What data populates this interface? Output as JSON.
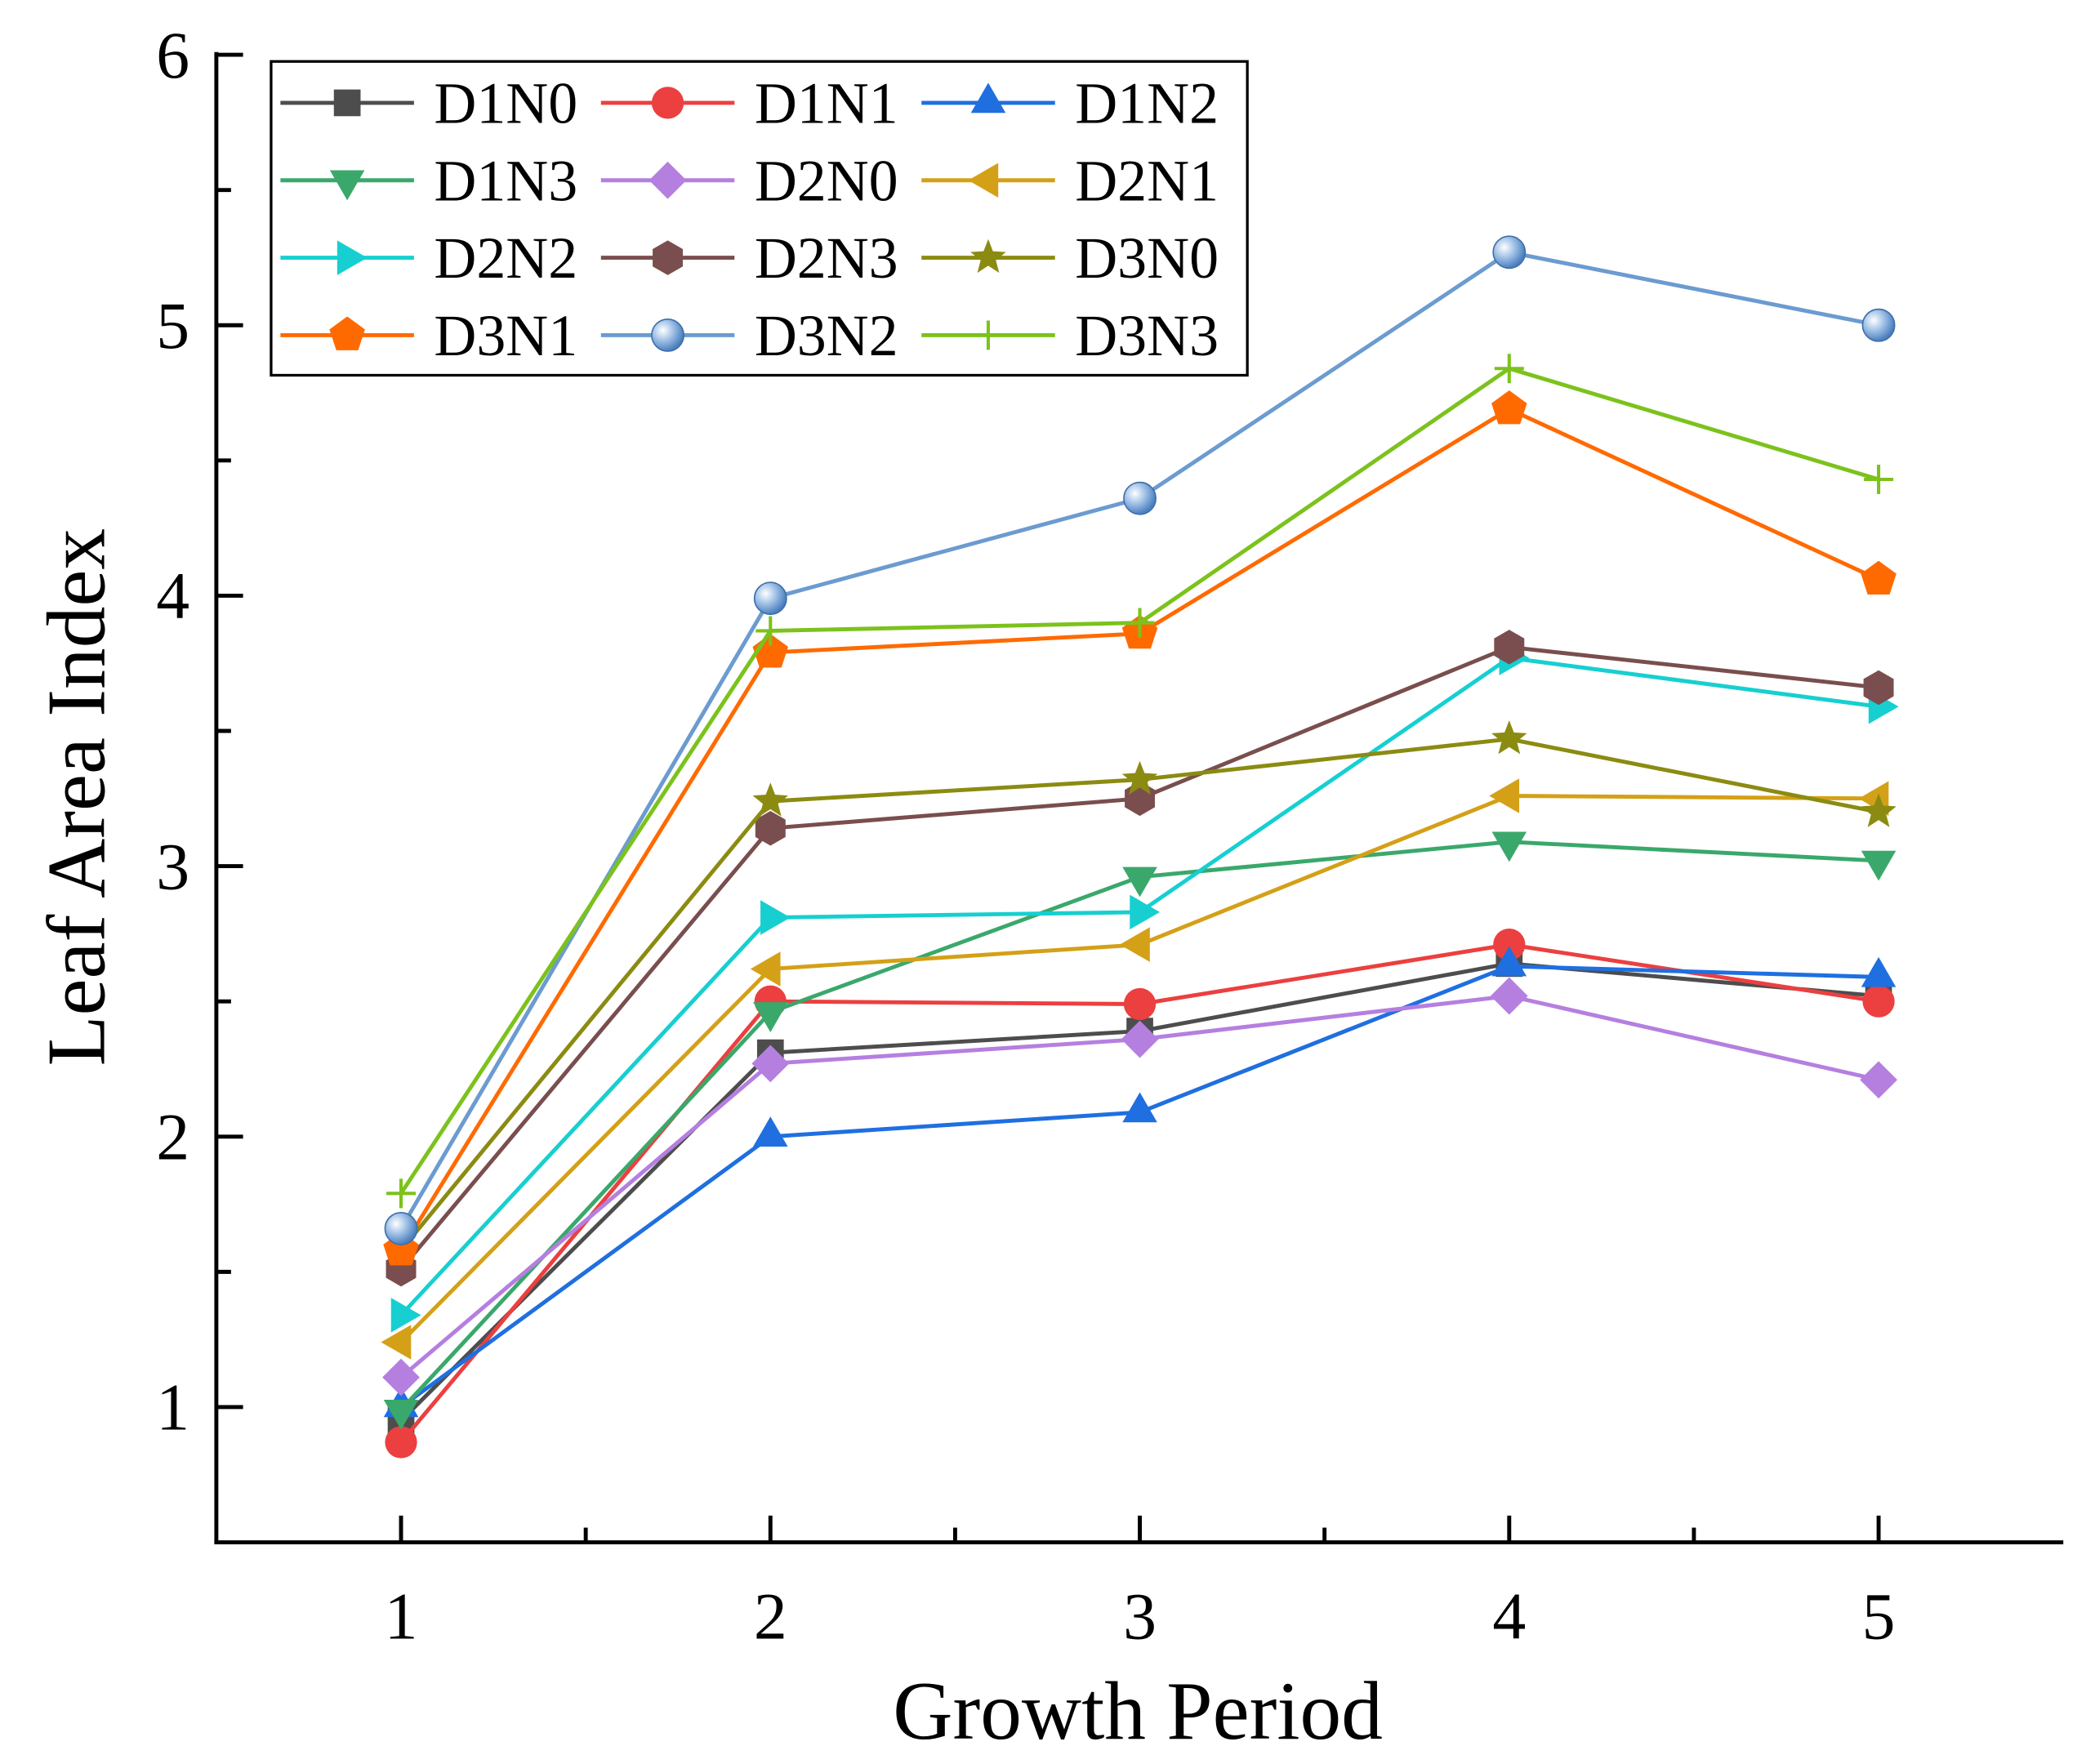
{
  "chart_data": {
    "type": "line",
    "title": "",
    "xlabel": "Growth Period",
    "ylabel": "Leaf Area Index",
    "x": [
      1,
      2,
      3,
      4,
      5
    ],
    "xlim": [
      0.5,
      5.5
    ],
    "ylim": [
      0.5,
      6
    ],
    "xticks": [
      "1",
      "2",
      "3",
      "4",
      "5"
    ],
    "yticks": [
      "1",
      "2",
      "3",
      "4",
      "5",
      "6"
    ],
    "grid": false,
    "legend_position": "top-left",
    "series": [
      {
        "name": "D1N0",
        "color": "#4d4d4d",
        "marker": "square",
        "values": [
          0.95,
          2.31,
          2.39,
          2.64,
          2.52
        ]
      },
      {
        "name": "D1N1",
        "color": "#ec3f3f",
        "marker": "circle",
        "values": [
          0.87,
          2.5,
          2.49,
          2.71,
          2.5
        ]
      },
      {
        "name": "D1N2",
        "color": "#1f6fe0",
        "marker": "triangle-up",
        "values": [
          1.0,
          2.0,
          2.09,
          2.63,
          2.59
        ]
      },
      {
        "name": "D1N3",
        "color": "#3aa86b",
        "marker": "triangle-down",
        "values": [
          0.99,
          2.46,
          2.96,
          3.09,
          3.02
        ]
      },
      {
        "name": "D2N0",
        "color": "#b57fe0",
        "marker": "diamond",
        "values": [
          1.11,
          2.27,
          2.36,
          2.52,
          2.21
        ]
      },
      {
        "name": "D2N1",
        "color": "#d4a017",
        "marker": "triangle-left",
        "values": [
          1.24,
          2.62,
          2.71,
          3.26,
          3.25
        ]
      },
      {
        "name": "D2N2",
        "color": "#17cfd0",
        "marker": "triangle-right",
        "values": [
          1.34,
          2.81,
          2.83,
          3.77,
          3.59
        ]
      },
      {
        "name": "D2N3",
        "color": "#7a4e4e",
        "marker": "hexagon",
        "values": [
          1.51,
          3.14,
          3.25,
          3.81,
          3.66
        ]
      },
      {
        "name": "D3N0",
        "color": "#8b8b12",
        "marker": "star",
        "values": [
          1.58,
          3.24,
          3.32,
          3.47,
          3.2
        ]
      },
      {
        "name": "D3N1",
        "color": "#ff6a00",
        "marker": "pentagon",
        "values": [
          1.58,
          3.79,
          3.86,
          4.69,
          4.06
        ]
      },
      {
        "name": "D3N2",
        "color": "#6b9bd0",
        "marker": "sphere",
        "values": [
          1.66,
          3.99,
          4.36,
          5.27,
          5.0
        ]
      },
      {
        "name": "D3N3",
        "color": "#7cc21c",
        "marker": "plus",
        "values": [
          1.79,
          3.87,
          3.9,
          4.84,
          4.43
        ]
      }
    ]
  }
}
